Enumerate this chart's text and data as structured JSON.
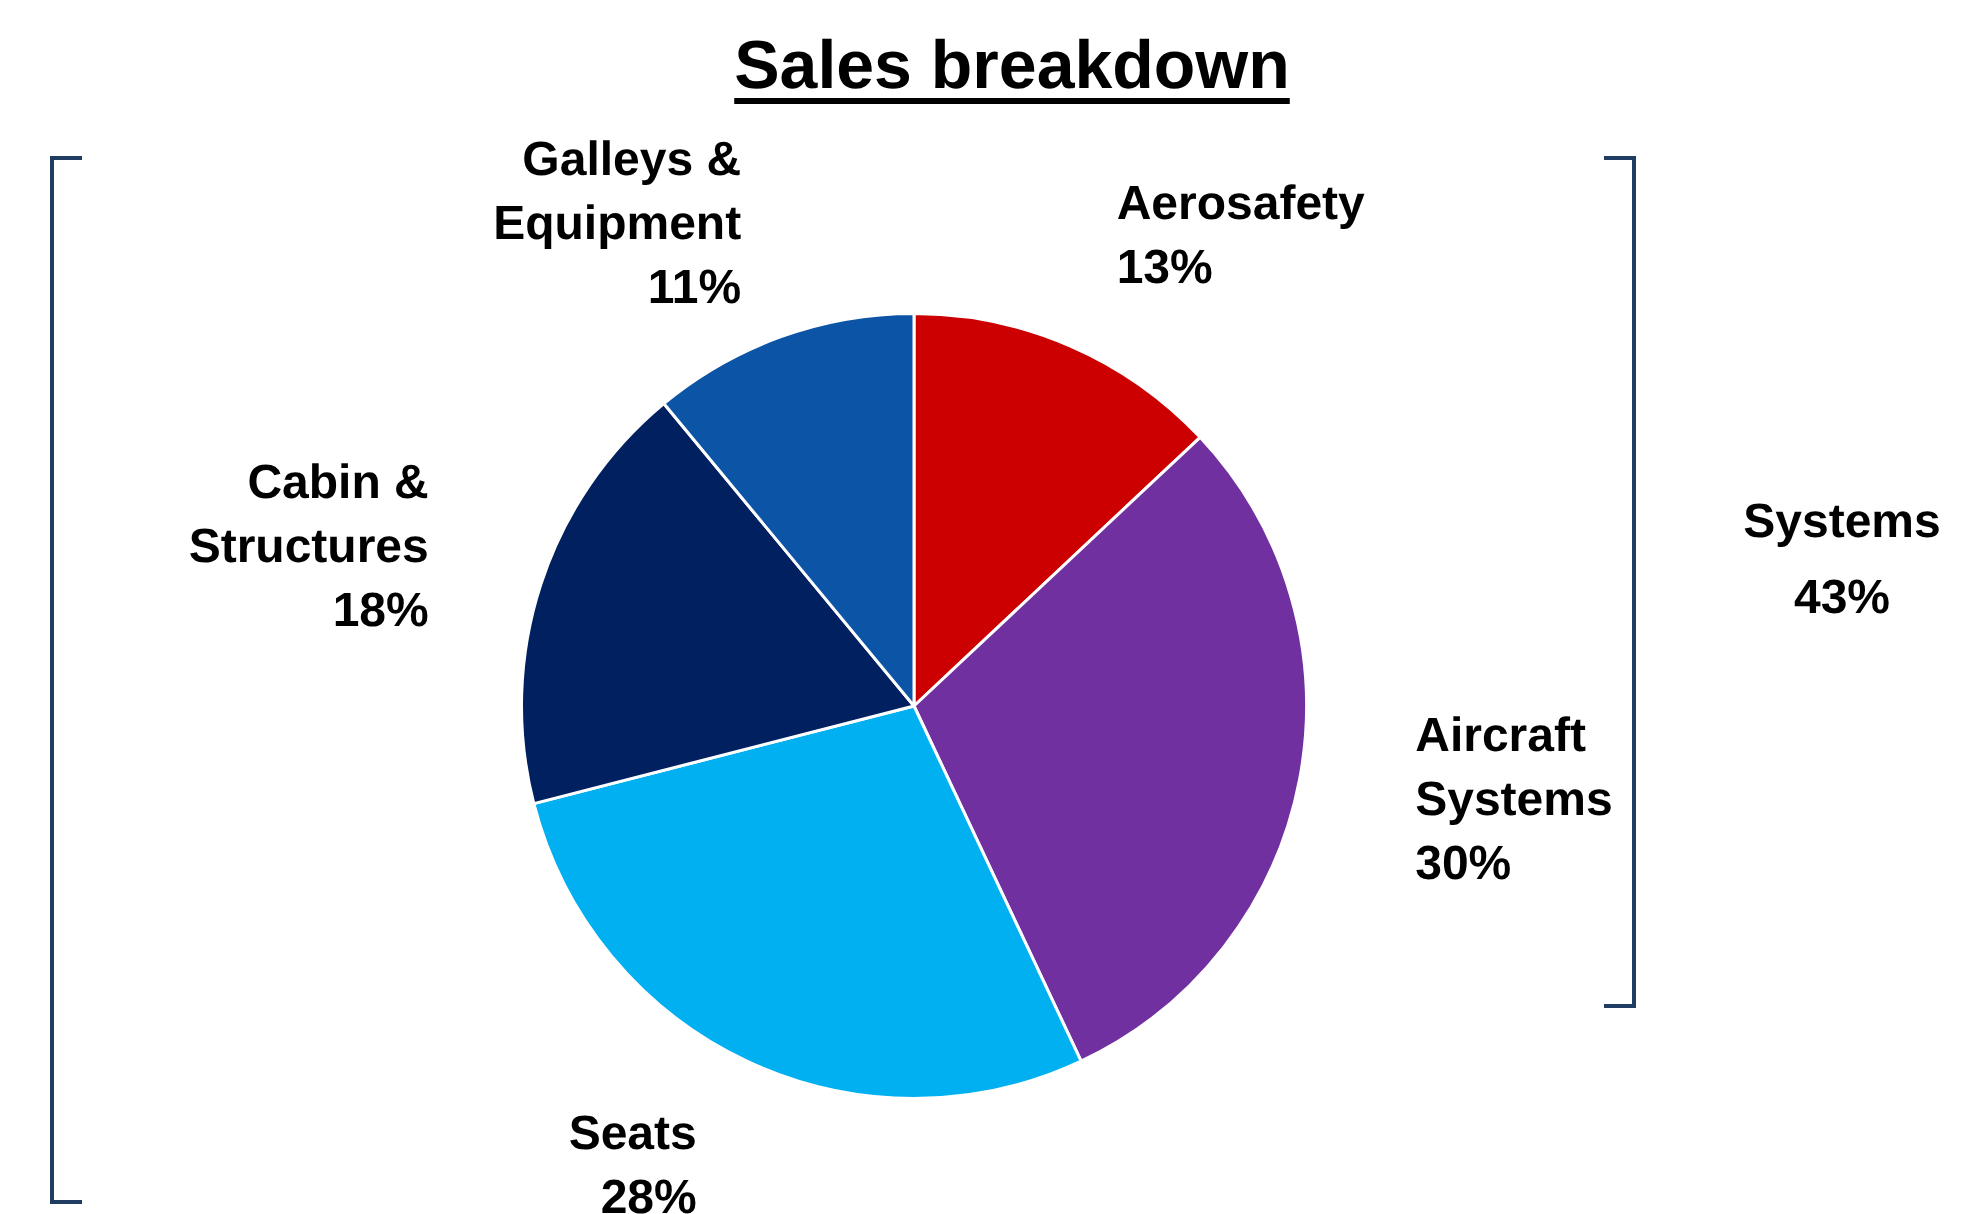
{
  "chart_data": {
    "type": "pie",
    "title": "Sales breakdown",
    "categories": [
      "Aerosafety",
      "Aircraft Systems",
      "Seats",
      "Cabin & Structures",
      "Galleys & Equipment"
    ],
    "values": [
      13,
      30,
      28,
      18,
      11
    ],
    "colors": [
      "#cc0000",
      "#7030a0",
      "#00b0f0",
      "#002060",
      "#0b54a6"
    ],
    "value_labels": [
      "13%",
      "30%",
      "28%",
      "18%",
      "11%"
    ],
    "legend": false,
    "annotations": [
      "Systems 43%"
    ]
  }
}
